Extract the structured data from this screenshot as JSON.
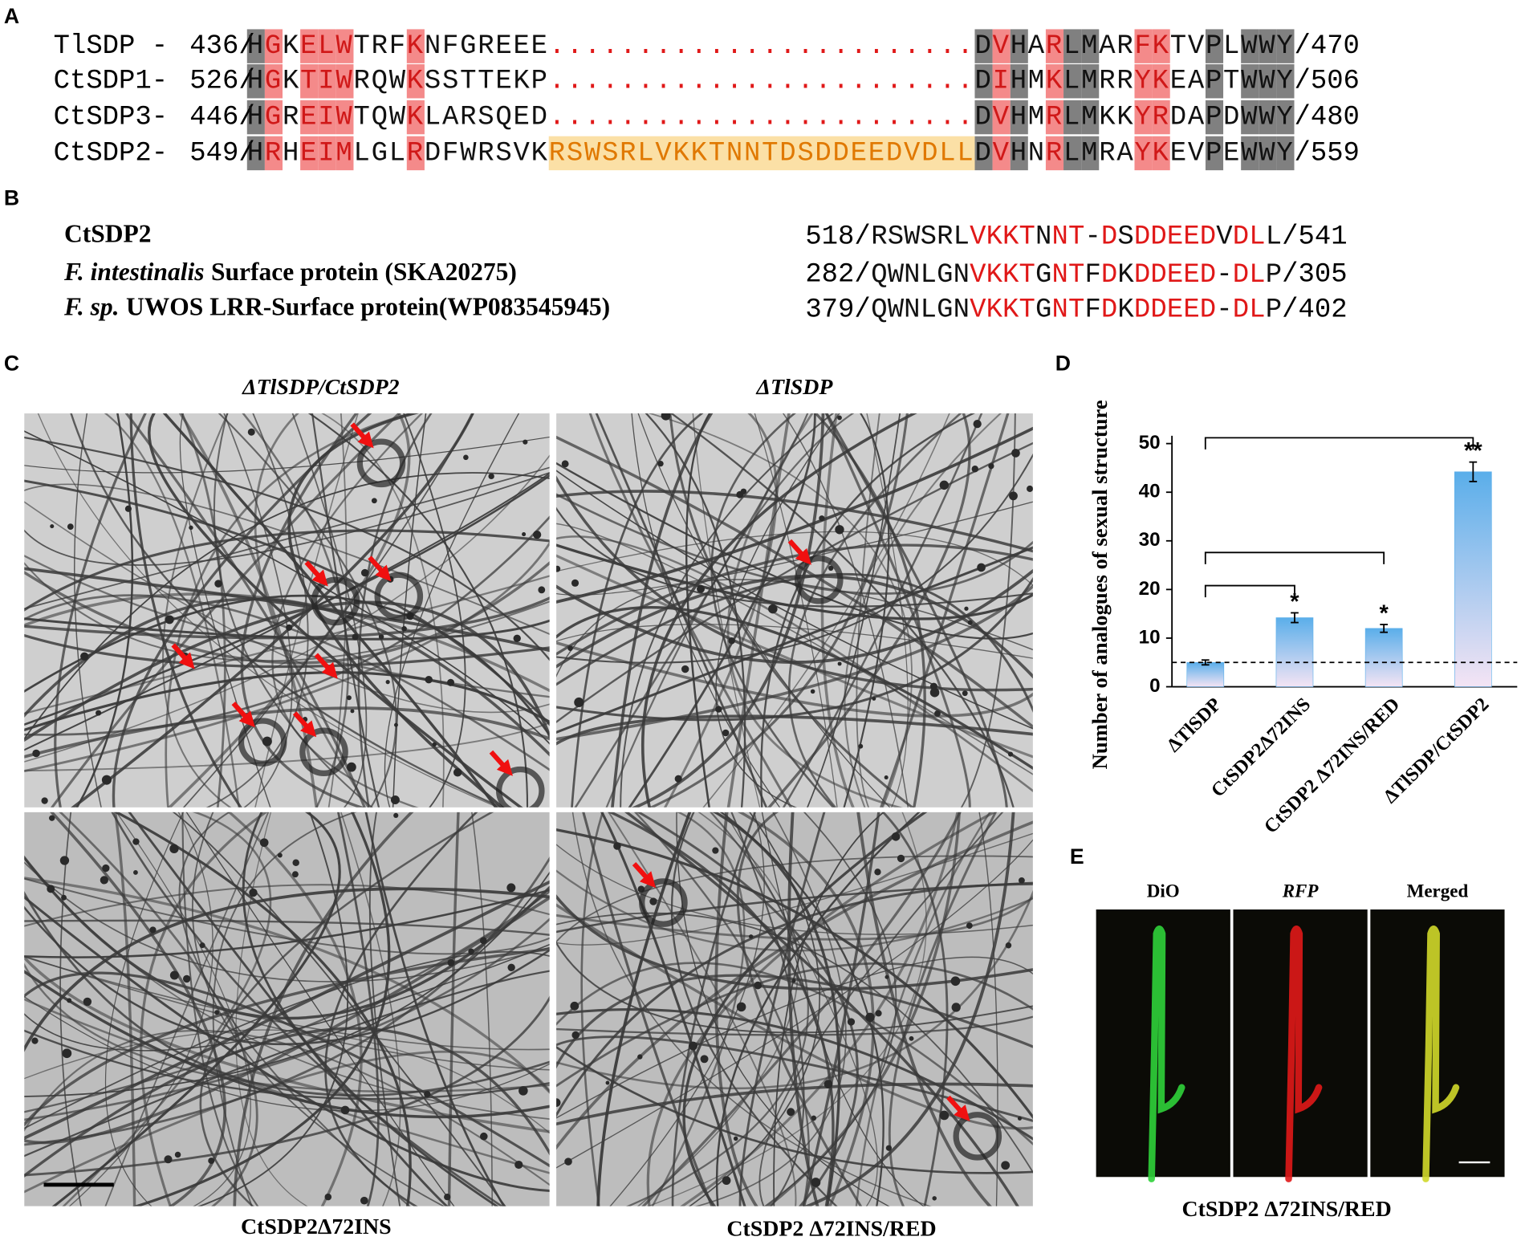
{
  "panel_labels": [
    "A",
    "B",
    "C",
    "D",
    "E"
  ],
  "alignment": {
    "rows": [
      {
        "name": "TlSDP -",
        "start": "436/",
        "seq": "HGKELWTRFKNFGREEE........................DVHARLMARFKTVPLWWY",
        "end": "/470"
      },
      {
        "name": "CtSDP1-",
        "start": "526/",
        "seq": "HGKTIWRQWKSSTTEKP........................DIHMKLMRRYKEAPTWWY",
        "end": "/506"
      },
      {
        "name": "CtSDP3-",
        "start": "446/",
        "seq": "HGREIWTQWKLARSQED........................DVHMRLMKKYRDAPDWWY",
        "end": "/480"
      },
      {
        "name": "CtSDP2-",
        "start": "549/",
        "seq": "HRHEIMLGLRDFWRSVKRSWSRLVKKTNNTDSDDEEDVDLLDVHNRLMRAYKEVPEWWY",
        "end": "/559"
      }
    ]
  },
  "homology": {
    "rows": [
      {
        "name": "CtSDP2",
        "start": "518/",
        "seq": "RSWSRLVKKTNNT-DSDDEEDVDLL",
        "end": "/541"
      },
      {
        "italic": "F. intestinalis",
        "name": "Surface protein (SKA20275)",
        "start": "282/",
        "seq": "QWNLGNVKKTGNTFDKDDEED-DLP",
        "end": "/305"
      },
      {
        "italic": "F. sp.",
        "name": "UWOS LRR-Surface protein(WP083545945)",
        "start": "379/",
        "seq": "QWNLGNVKKTGNTFDKDDEED-DLP",
        "end": "/402"
      }
    ]
  },
  "micrographs": {
    "captions": [
      "ΔTlSDP/CtSDP2",
      "ΔTlSDP",
      "CtSDP2Δ72INS",
      "CtSDP2 Δ72INS/RED"
    ]
  },
  "chart_data": {
    "type": "bar",
    "ylabel": "Number of analogues of sexual structure",
    "categories": [
      "ΔTlSDP",
      "CtSDP2Δ72INS",
      "CtSDP2 Δ72INS/RED",
      "ΔTlSDP/CtSDP2"
    ],
    "values": [
      5,
      14.2,
      12,
      44.2
    ],
    "errors": [
      0.5,
      1,
      0.8,
      2
    ],
    "significance": [
      null,
      "*",
      "*",
      "**"
    ],
    "color": "#5aaeea",
    "ylim": [
      0,
      50
    ],
    "yticks": [
      0,
      10,
      20,
      30,
      40,
      50
    ]
  },
  "fluorescence": {
    "channels": [
      "DiO",
      "RFP",
      "Merged"
    ],
    "caption": "CtSDP2 Δ72INS/RED"
  }
}
